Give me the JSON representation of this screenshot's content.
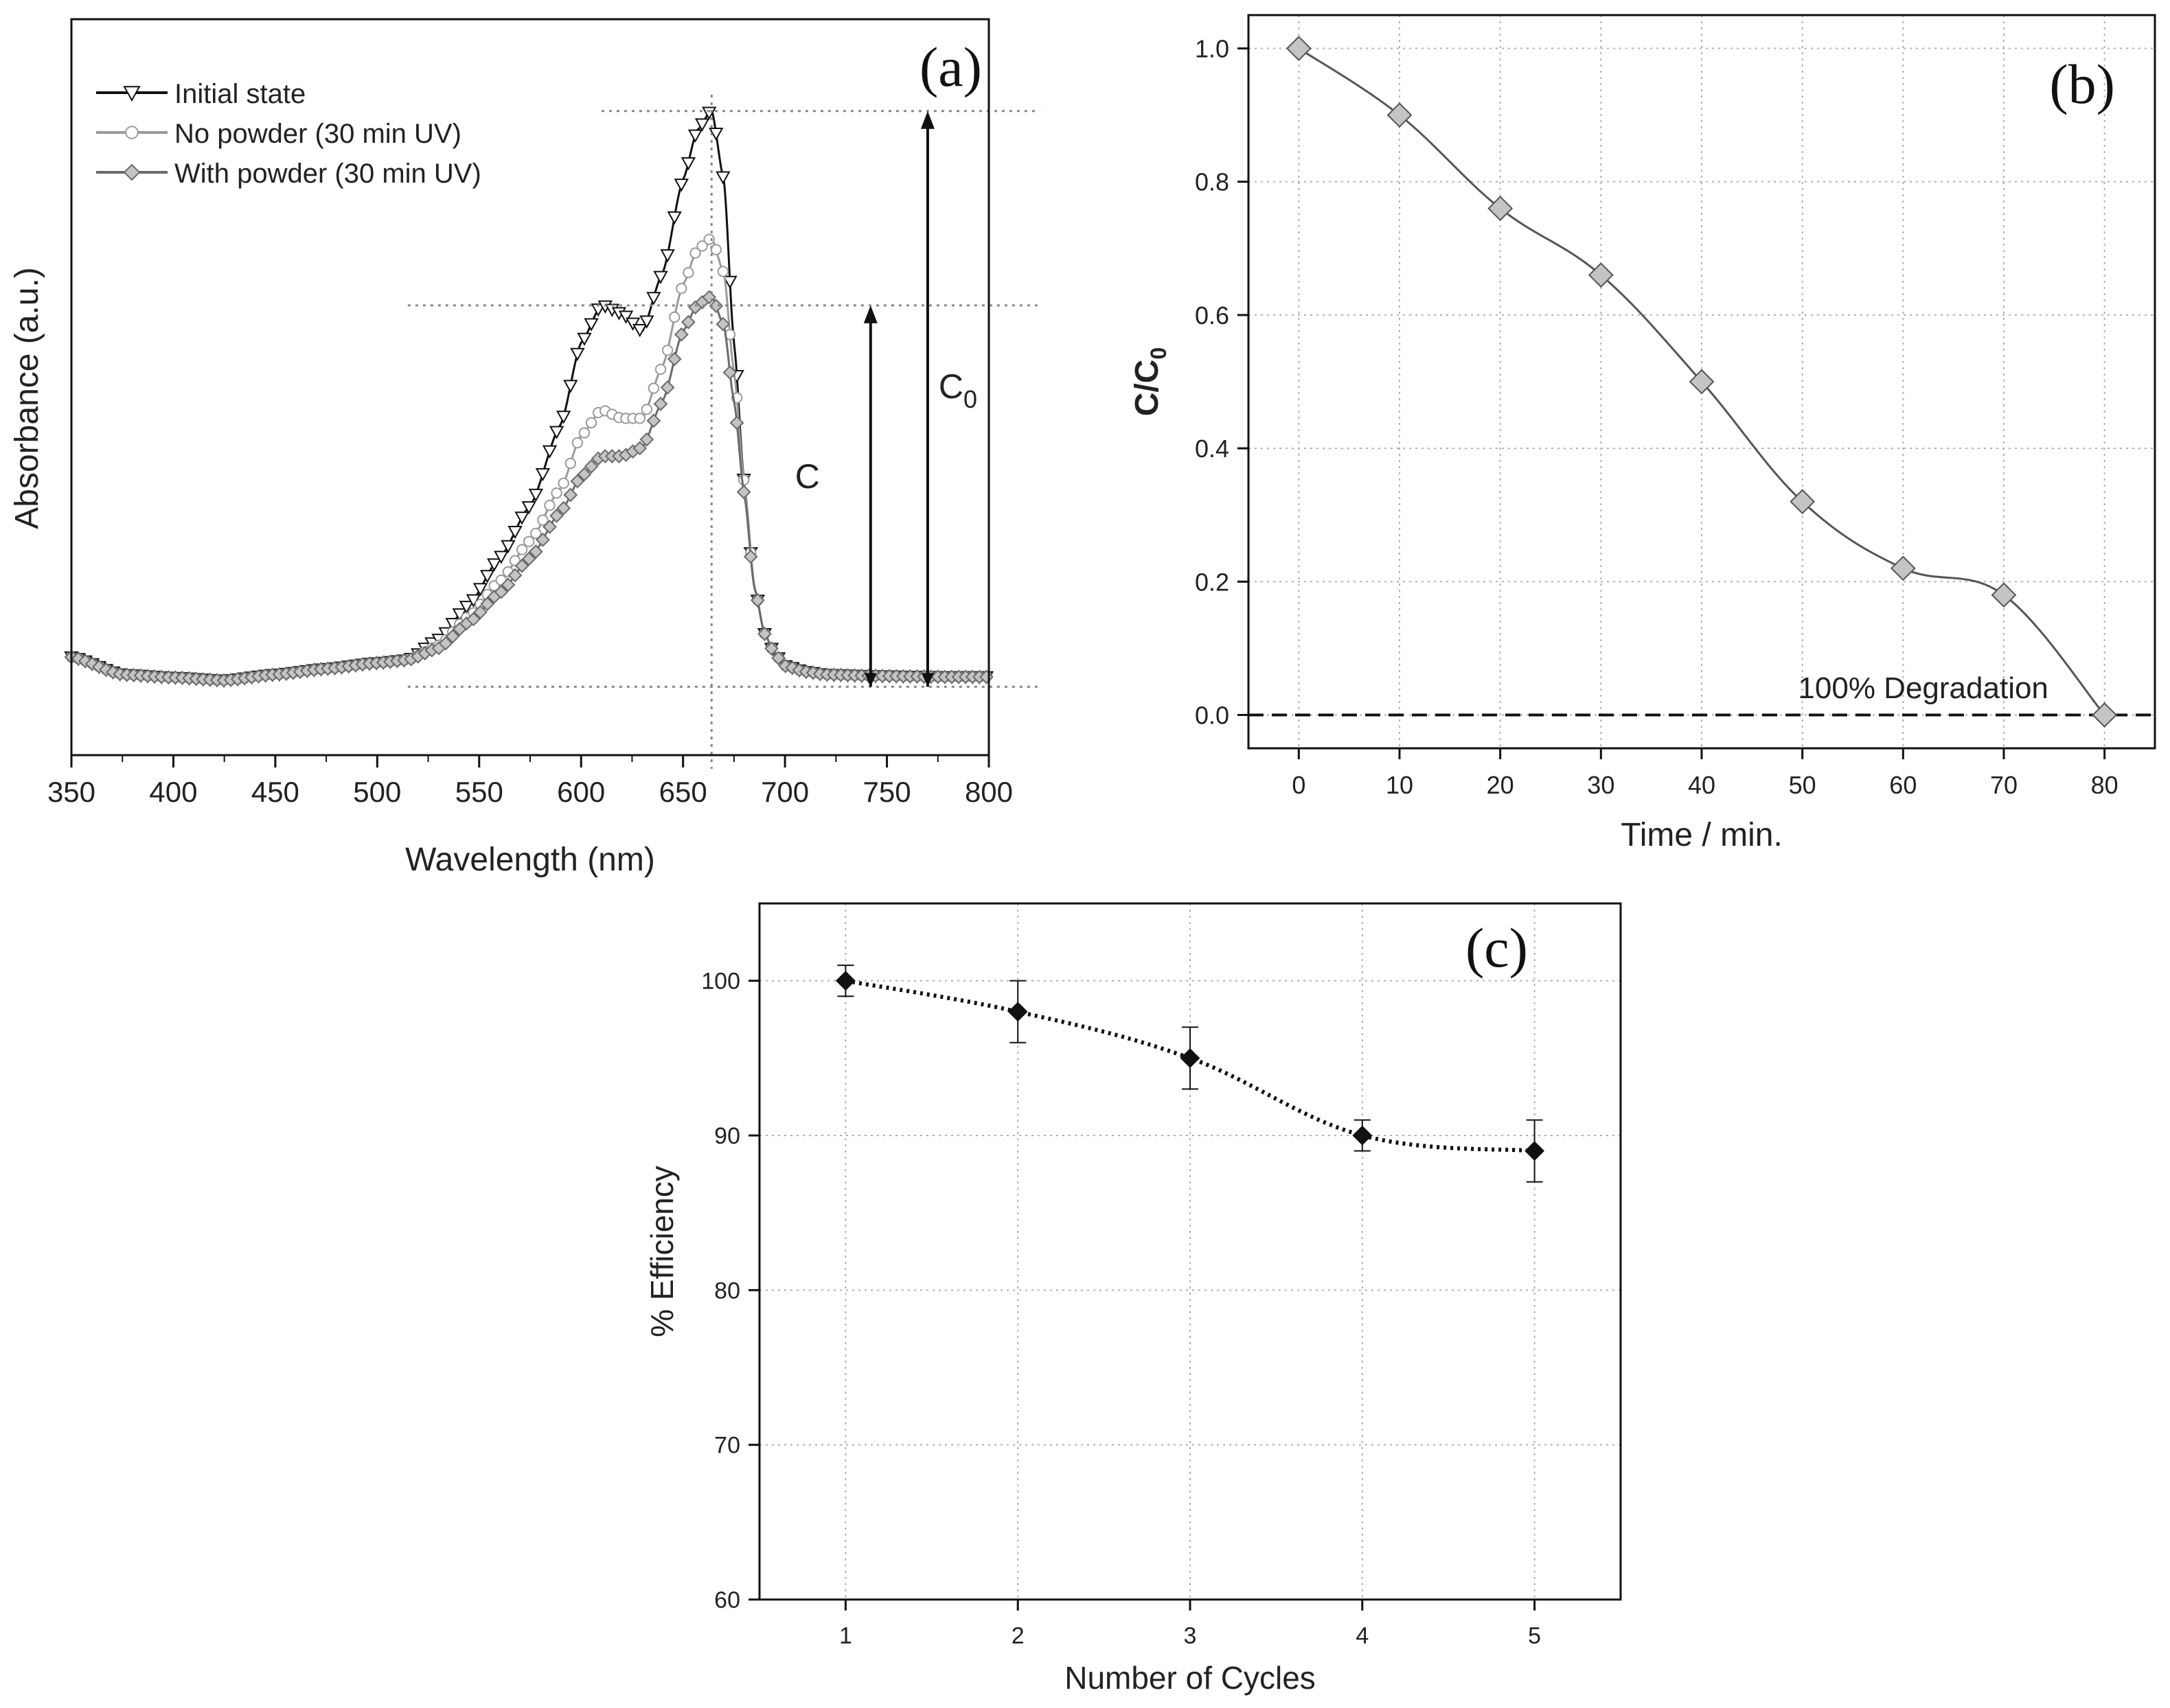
{
  "colors": {
    "initial": "#111111",
    "no_powder": "#9a9a9a",
    "with_powder": "#6a6a6a",
    "marker_fill": "#c4c4c4",
    "grid": "#b0b0b0",
    "axis": "#111111"
  },
  "chart_data": [
    {
      "id": "a",
      "type": "line",
      "panel_label": "(a)",
      "xlabel": "Wavelength (nm)",
      "ylabel": "Absorbance (a.u.)",
      "xlim": [
        350,
        800
      ],
      "ylim": [
        0,
        1
      ],
      "x_ticks": [
        "350",
        "400",
        "450",
        "500",
        "550",
        "600",
        "650",
        "700",
        "750",
        "800"
      ],
      "y_ticks_shown": false,
      "legend": {
        "placement": "top-left",
        "entries": [
          "Initial state",
          "No powder (30 min UV)",
          "With powder (30 min UV)"
        ]
      },
      "annotations": {
        "c_label": "C",
        "c0_label": "C",
        "c0_sub": "0",
        "peak_wavelength": 664,
        "c_level": 0.664,
        "c0_level": 0.998,
        "baseline_level": 0.009,
        "c_arrow_x": 742,
        "c0_arrow_x": 770
      },
      "series": [
        {
          "name": "Initial state",
          "marker": "triangle-down",
          "x": [
            350,
            375,
            400,
            425,
            450,
            475,
            500,
            515,
            530,
            545,
            560,
            575,
            590,
            600,
            610,
            620,
            630,
            640,
            650,
            657,
            664,
            670,
            675,
            680,
            685,
            690,
            695,
            700,
            710,
            720,
            740,
            760,
            780,
            800
          ],
          "y": [
            0.06,
            0.03,
            0.025,
            0.02,
            0.03,
            0.04,
            0.05,
            0.055,
            0.09,
            0.15,
            0.23,
            0.32,
            0.46,
            0.6,
            0.665,
            0.65,
            0.62,
            0.72,
            0.88,
            0.965,
            1.0,
            0.88,
            0.6,
            0.36,
            0.18,
            0.1,
            0.065,
            0.045,
            0.035,
            0.03,
            0.028,
            0.027,
            0.026,
            0.026
          ]
        },
        {
          "name": "No powder (30 min UV)",
          "marker": "circle",
          "x": [
            350,
            375,
            400,
            425,
            450,
            475,
            500,
            515,
            530,
            545,
            560,
            575,
            590,
            600,
            610,
            620,
            630,
            640,
            650,
            657,
            664,
            670,
            675,
            680,
            685,
            690,
            695,
            700,
            710,
            720,
            740,
            760,
            780,
            800
          ],
          "y": [
            0.06,
            0.03,
            0.025,
            0.02,
            0.03,
            0.04,
            0.05,
            0.055,
            0.08,
            0.13,
            0.19,
            0.26,
            0.35,
            0.44,
            0.485,
            0.47,
            0.47,
            0.56,
            0.7,
            0.76,
            0.78,
            0.72,
            0.55,
            0.36,
            0.18,
            0.1,
            0.065,
            0.045,
            0.035,
            0.03,
            0.028,
            0.027,
            0.026,
            0.026
          ]
        },
        {
          "name": "With powder (30 min UV)",
          "marker": "diamond",
          "x": [
            350,
            375,
            400,
            425,
            450,
            475,
            500,
            515,
            530,
            545,
            560,
            575,
            590,
            600,
            610,
            620,
            630,
            640,
            650,
            657,
            664,
            670,
            675,
            680,
            685,
            690,
            695,
            700,
            710,
            720,
            740,
            760,
            780,
            800
          ],
          "y": [
            0.06,
            0.03,
            0.025,
            0.02,
            0.03,
            0.04,
            0.05,
            0.055,
            0.075,
            0.12,
            0.17,
            0.23,
            0.31,
            0.37,
            0.405,
            0.405,
            0.42,
            0.5,
            0.62,
            0.665,
            0.68,
            0.63,
            0.5,
            0.34,
            0.18,
            0.1,
            0.065,
            0.045,
            0.035,
            0.03,
            0.028,
            0.027,
            0.026,
            0.026
          ]
        }
      ]
    },
    {
      "id": "b",
      "type": "line",
      "panel_label": "(b)",
      "xlabel": "Time / min.",
      "ylabel": "C/C",
      "ylabel_sub": "0",
      "xlim": [
        -5,
        85
      ],
      "ylim": [
        -0.05,
        1.05
      ],
      "x_ticks": [
        "0",
        "10",
        "20",
        "30",
        "40",
        "50",
        "60",
        "70",
        "80"
      ],
      "y_ticks": [
        "0.0",
        "0.2",
        "0.4",
        "0.6",
        "0.8",
        "1.0"
      ],
      "grid": true,
      "marker": "diamond",
      "annotation": "100% Degradation",
      "x": [
        0,
        10,
        20,
        30,
        40,
        50,
        60,
        70,
        80
      ],
      "y": [
        1.0,
        0.9,
        0.76,
        0.66,
        0.5,
        0.32,
        0.22,
        0.18,
        0.0
      ]
    },
    {
      "id": "c",
      "type": "line",
      "panel_label": "(c)",
      "xlabel": "Number of Cycles",
      "ylabel": "% Efficiency",
      "xlim": [
        0.5,
        5.5
      ],
      "ylim": [
        60,
        105
      ],
      "x_ticks": [
        "1",
        "2",
        "3",
        "4",
        "5"
      ],
      "y_ticks": [
        "60",
        "70",
        "80",
        "90",
        "100"
      ],
      "grid": true,
      "marker": "diamond",
      "x": [
        1,
        2,
        3,
        4,
        5
      ],
      "y": [
        100,
        98,
        95,
        90,
        89
      ],
      "error": [
        1,
        2,
        2,
        1,
        2
      ]
    }
  ]
}
